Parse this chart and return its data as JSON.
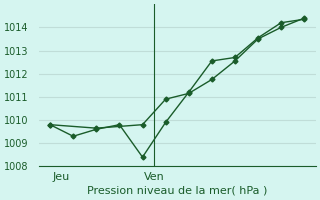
{
  "title": "Pression niveau de la mer( hPa )",
  "bg_color": "#d5f5f0",
  "grid_color": "#c0ddd8",
  "line_color": "#1a5c2a",
  "ylim": [
    1008,
    1015
  ],
  "yticks": [
    1008,
    1009,
    1010,
    1011,
    1012,
    1013,
    1014
  ],
  "xlabel_fontsize": 8,
  "tick_labelsize": 7,
  "series1_x": [
    0,
    1,
    2,
    3,
    4,
    5,
    6,
    7,
    8,
    9,
    10,
    11
  ],
  "series1_y": [
    1009.8,
    1009.3,
    1009.6,
    1009.8,
    1008.4,
    1009.9,
    1011.2,
    1012.55,
    1012.7,
    1013.55,
    1014.2,
    1014.35
  ],
  "series2_x": [
    0,
    2,
    4,
    5,
    6,
    7,
    8,
    9,
    10,
    11
  ],
  "series2_y": [
    1009.8,
    1009.65,
    1009.8,
    1010.9,
    1011.15,
    1011.75,
    1012.55,
    1013.5,
    1014.0,
    1014.4
  ],
  "vline_x": 4.5,
  "jeu_x": 0.5,
  "ven_x": 4.5,
  "xlim": [
    -0.5,
    11.5
  ]
}
